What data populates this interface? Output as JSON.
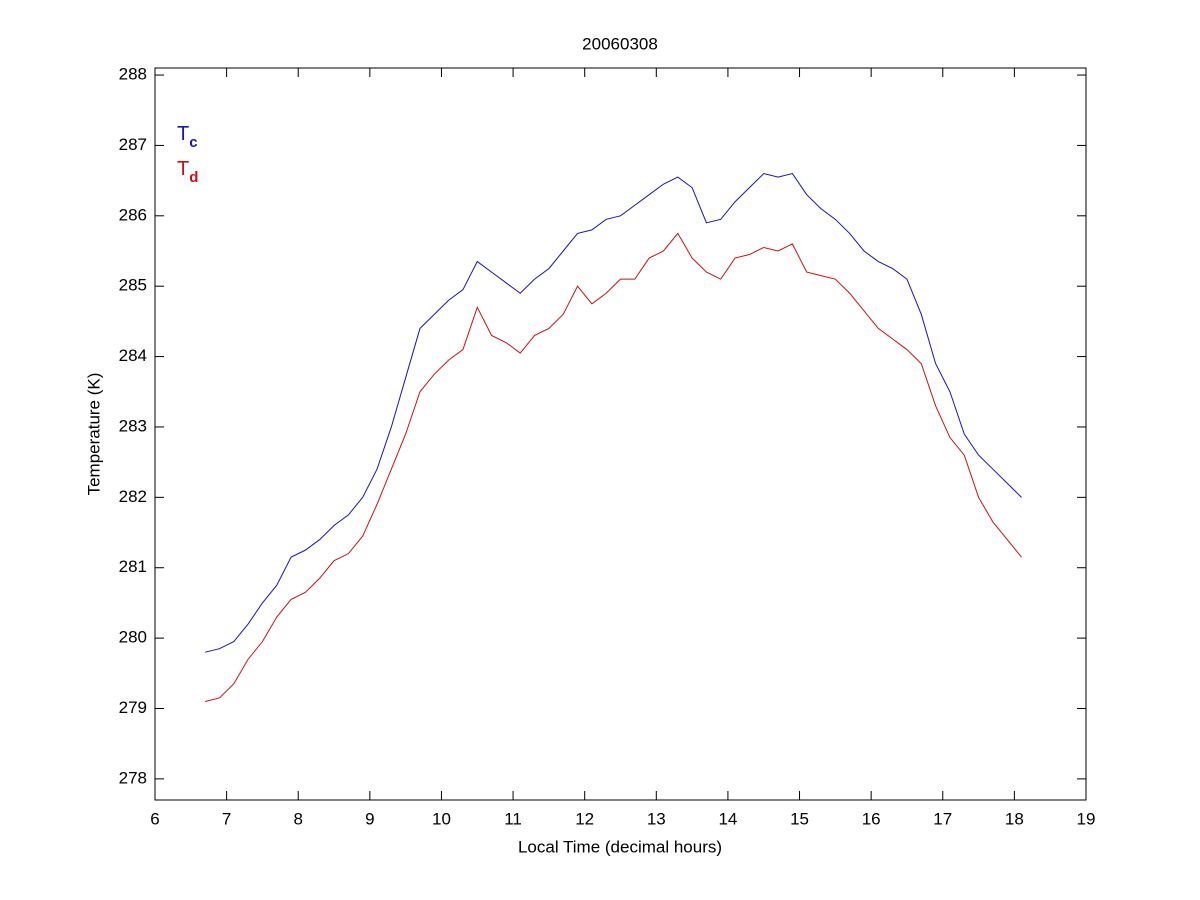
{
  "chart_data": {
    "type": "line",
    "title": "20060308",
    "x_label": "Local Time (decimal hours)",
    "y_label": "Temperature (K)",
    "x": [
      6.7,
      6.9,
      7.1,
      7.3,
      7.5,
      7.7,
      7.9,
      8.1,
      8.3,
      8.5,
      8.7,
      8.9,
      9.1,
      9.3,
      9.5,
      9.7,
      9.9,
      10.1,
      10.3,
      10.5,
      10.7,
      10.9,
      11.1,
      11.3,
      11.5,
      11.7,
      11.9,
      12.1,
      12.3,
      12.5,
      12.7,
      12.9,
      13.1,
      13.3,
      13.5,
      13.7,
      13.9,
      14.1,
      14.3,
      14.5,
      14.7,
      14.9,
      15.1,
      15.3,
      15.5,
      15.7,
      15.9,
      16.1,
      16.3,
      16.5,
      16.7,
      16.9,
      17.1,
      17.3,
      17.5,
      17.7,
      17.9,
      18.1
    ],
    "series": [
      {
        "name": "Tc",
        "color": "#1414c8",
        "values": [
          279.8,
          279.85,
          279.95,
          280.2,
          280.5,
          280.75,
          281.15,
          281.25,
          281.4,
          281.6,
          281.75,
          282.0,
          282.4,
          283.0,
          283.7,
          284.4,
          284.6,
          284.8,
          284.95,
          285.35,
          285.2,
          285.05,
          284.9,
          285.1,
          285.25,
          285.5,
          285.75,
          285.8,
          285.95,
          286.0,
          286.15,
          286.3,
          286.45,
          286.55,
          286.4,
          285.9,
          285.95,
          286.2,
          286.4,
          286.6,
          286.55,
          286.6,
          286.3,
          286.1,
          285.95,
          285.75,
          285.5,
          285.35,
          285.25,
          285.1,
          284.6,
          283.9,
          283.5,
          282.9,
          282.6,
          282.4,
          282.2,
          282.0
        ]
      },
      {
        "name": "Td",
        "color": "#d01010",
        "values": [
          279.1,
          279.15,
          279.35,
          279.7,
          279.95,
          280.3,
          280.55,
          280.65,
          280.85,
          281.1,
          281.2,
          281.45,
          281.9,
          282.4,
          282.9,
          283.5,
          283.75,
          283.95,
          284.1,
          284.7,
          284.3,
          284.2,
          284.05,
          284.3,
          284.4,
          284.6,
          285.0,
          284.75,
          284.9,
          285.1,
          285.1,
          285.4,
          285.5,
          285.75,
          285.4,
          285.2,
          285.1,
          285.4,
          285.45,
          285.55,
          285.5,
          285.6,
          285.2,
          285.15,
          285.1,
          284.9,
          284.65,
          284.4,
          284.25,
          284.1,
          283.9,
          283.3,
          282.85,
          282.6,
          282.0,
          281.65,
          281.4,
          281.15
        ]
      }
    ],
    "xlim": [
      6,
      19
    ],
    "xticks": [
      6,
      7,
      8,
      9,
      10,
      11,
      12,
      13,
      14,
      15,
      16,
      17,
      18,
      19
    ],
    "ylim": [
      277.7,
      288.1
    ],
    "yticks": [
      278,
      279,
      280,
      281,
      282,
      283,
      284,
      285,
      286,
      287,
      288
    ],
    "grid": false,
    "legend": "upper left"
  }
}
